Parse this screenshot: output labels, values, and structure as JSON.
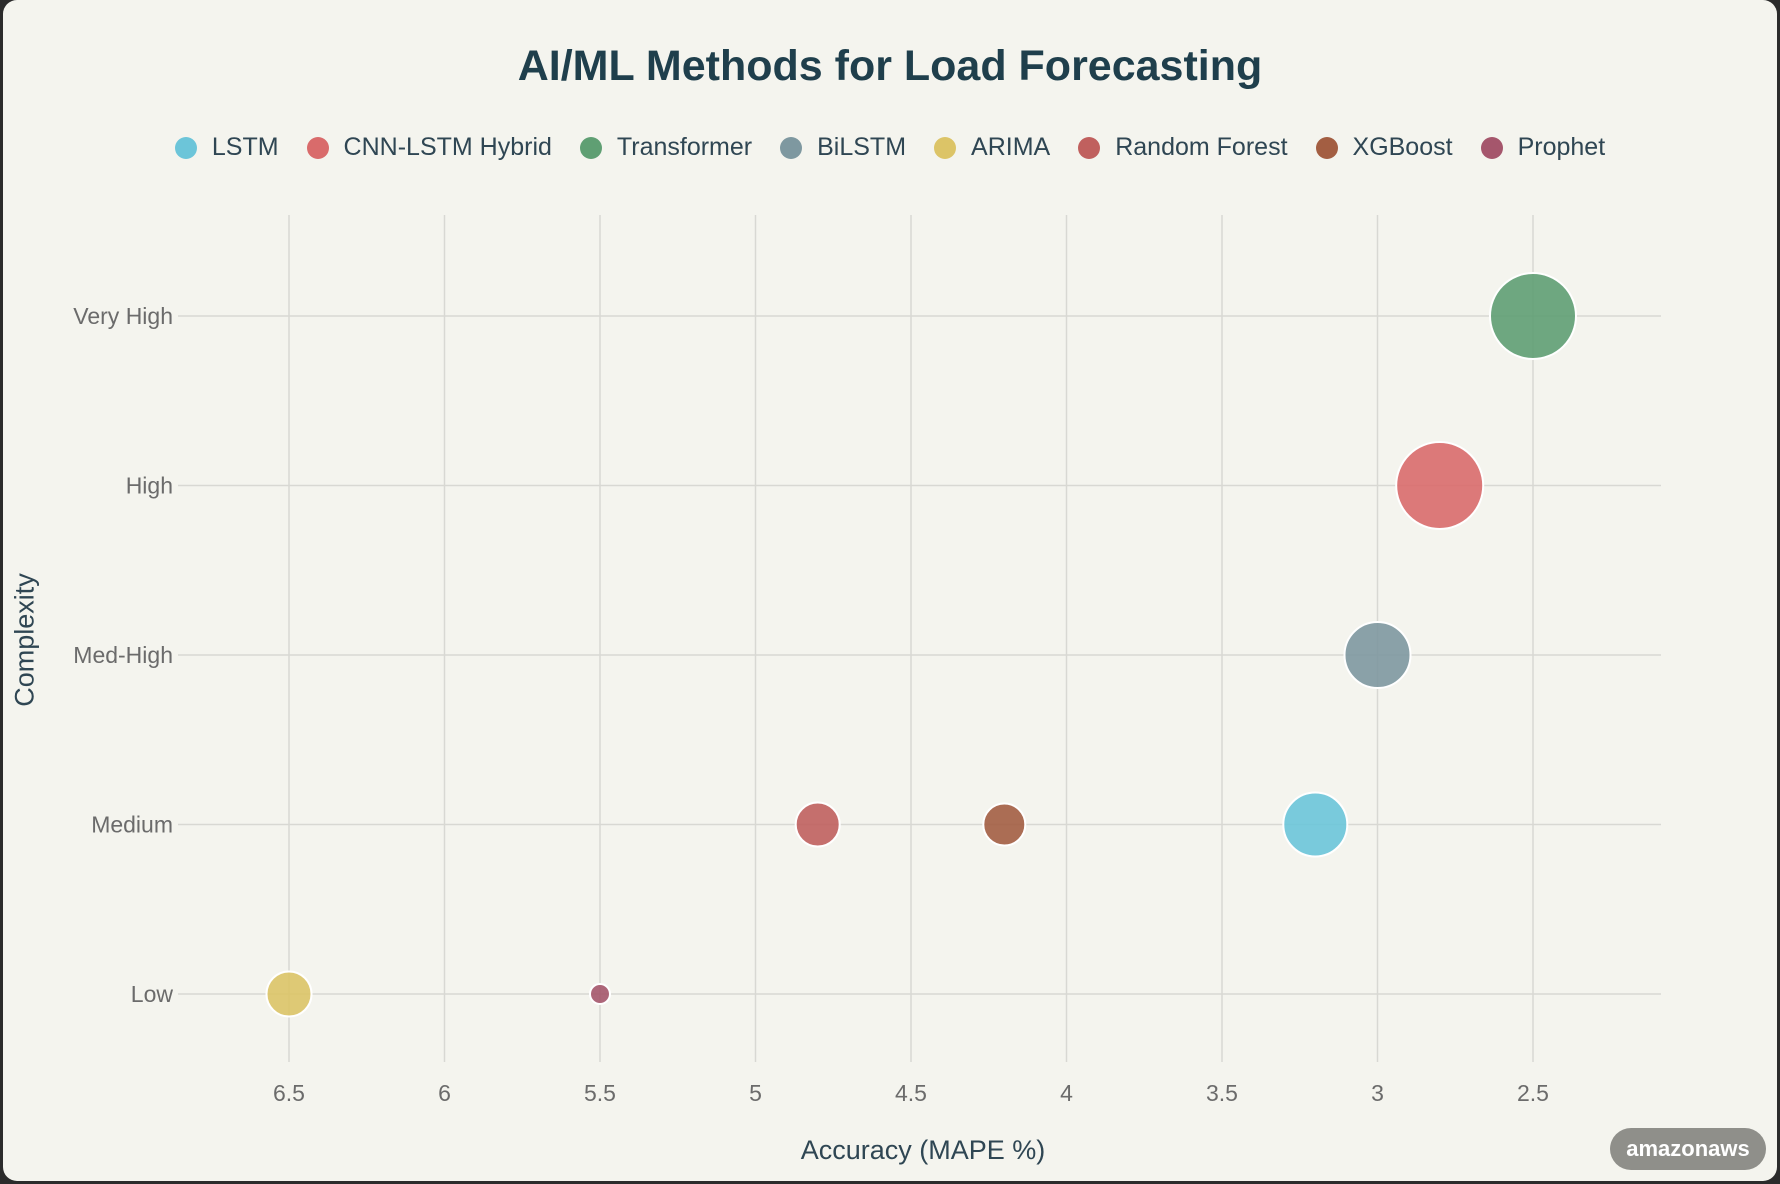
{
  "chart_data": {
    "type": "scatter",
    "title": "AI/ML Methods for Load Forecasting",
    "xlabel": "Accuracy (MAPE %)",
    "ylabel": "Complexity",
    "x_reversed": true,
    "xlim": [
      6.9,
      2.08
    ],
    "xticks": [
      6.5,
      6,
      5.5,
      5,
      4.5,
      4,
      3.5,
      3,
      2.5
    ],
    "x_tick_labels": [
      "6.5",
      "6",
      "5.5",
      "5",
      "4.5",
      "4",
      "3.5",
      "3",
      "2.5"
    ],
    "y_categories": [
      "Low",
      "Medium",
      "Med-High",
      "High",
      "Very High"
    ],
    "grid": true,
    "legend_position": "top",
    "series": [
      {
        "name": "LSTM",
        "color": "#6cc5d9",
        "x": 3.2,
        "y": "Medium",
        "size": 3.2
      },
      {
        "name": "CNN-LSTM Hybrid",
        "color": "#d96b6b",
        "x": 2.8,
        "y": "High",
        "size": 4.35
      },
      {
        "name": "Transformer",
        "color": "#5f9f73",
        "x": 2.5,
        "y": "Very High",
        "size": 4.3
      },
      {
        "name": "BiLSTM",
        "color": "#7e98a0",
        "x": 3.0,
        "y": "Med-High",
        "size": 3.3
      },
      {
        "name": "ARIMA",
        "color": "#dcc467",
        "x": 6.5,
        "y": "Low",
        "size": 2.25
      },
      {
        "name": "Random Forest",
        "color": "#c0605e",
        "x": 4.8,
        "y": "Medium",
        "size": 2.2
      },
      {
        "name": "XGBoost",
        "color": "#a35e42",
        "x": 4.2,
        "y": "Medium",
        "size": 2.1
      },
      {
        "name": "Prophet",
        "color": "#a5566c",
        "x": 5.5,
        "y": "Low",
        "size": 1.0
      }
    ]
  },
  "watermark": "amazonaws"
}
